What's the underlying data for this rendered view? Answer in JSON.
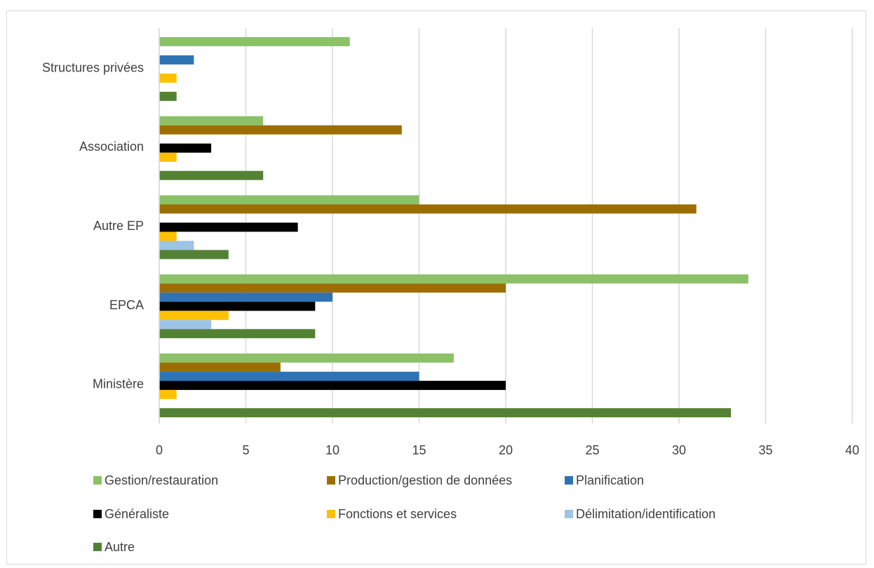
{
  "chart_data": {
    "type": "bar",
    "orientation": "horizontal",
    "title": "",
    "xlabel": "",
    "ylabel": "",
    "xlim": [
      0,
      40
    ],
    "x_ticks": [
      0,
      5,
      10,
      15,
      20,
      25,
      30,
      35,
      40
    ],
    "grid": "vertical",
    "legend_position": "bottom",
    "categories": [
      "Ministère",
      "EPCA",
      "Autre EP",
      "Association",
      "Structures privées"
    ],
    "series": [
      {
        "name": "Gestion/restauration",
        "color": "#8cc168",
        "values": [
          17,
          34,
          15,
          6,
          11
        ]
      },
      {
        "name": "Production/gestion de données",
        "color": "#9c6e00",
        "values": [
          7,
          20,
          31,
          14,
          0
        ]
      },
      {
        "name": "Planification",
        "color": "#2e74b5",
        "values": [
          15,
          10,
          0,
          0,
          2
        ]
      },
      {
        "name": "Généraliste",
        "color": "#000000",
        "values": [
          20,
          9,
          8,
          3,
          0
        ]
      },
      {
        "name": "Fonctions et services",
        "color": "#ffc000",
        "values": [
          1,
          4,
          1,
          1,
          1
        ]
      },
      {
        "name": "Délimitation/identification",
        "color": "#9dc3e6",
        "values": [
          0,
          3,
          2,
          0,
          0
        ]
      },
      {
        "name": "Autre",
        "color": "#548235",
        "values": [
          33,
          9,
          4,
          6,
          1
        ]
      }
    ]
  }
}
